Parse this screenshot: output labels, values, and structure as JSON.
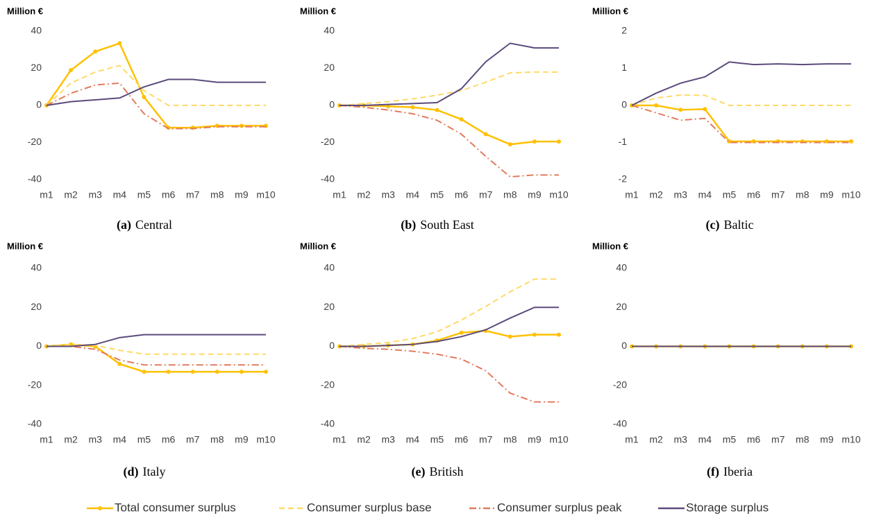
{
  "chart_data": [
    {
      "type": "line",
      "label": "(a)",
      "caption": "Central",
      "ylabel": "Million €",
      "categories": [
        "m1",
        "m2",
        "m3",
        "m4",
        "m5",
        "m6",
        "m7",
        "m8",
        "m9",
        "m10"
      ],
      "ylim": [
        -40,
        40
      ],
      "yticks": [
        -40,
        -20,
        0,
        20,
        40
      ],
      "grid": false,
      "series": [
        {
          "name": "Total consumer surplus",
          "color": "#ffc000",
          "style": "solid-markers",
          "values": [
            0,
            19,
            29,
            33.5,
            4.5,
            -12,
            -12,
            -11,
            -11,
            -11
          ]
        },
        {
          "name": "Consumer surplus base",
          "color": "#ffd966",
          "style": "dashed",
          "values": [
            0,
            12,
            18,
            21.5,
            8,
            0,
            0,
            0,
            0,
            0
          ]
        },
        {
          "name": "Consumer surplus peak",
          "color": "#e27b5c",
          "style": "dashdot",
          "values": [
            0,
            6.5,
            11,
            12,
            -4.5,
            -12.5,
            -12.5,
            -11.5,
            -11.5,
            -11.5
          ]
        },
        {
          "name": "Storage surplus",
          "color": "#5b4a7b",
          "style": "solid",
          "values": [
            0,
            2,
            3,
            4,
            10,
            14,
            14,
            12.5,
            12.5,
            12.5
          ]
        }
      ]
    },
    {
      "type": "line",
      "label": "(b)",
      "caption": "South East",
      "ylabel": "Million €",
      "categories": [
        "m1",
        "m2",
        "m3",
        "m4",
        "m5",
        "m6",
        "m7",
        "m8",
        "m9",
        "m10"
      ],
      "ylim": [
        -40,
        40
      ],
      "yticks": [
        -40,
        -20,
        0,
        20,
        40
      ],
      "grid": false,
      "series": [
        {
          "name": "Total consumer surplus",
          "color": "#ffc000",
          "style": "solid-markers",
          "values": [
            0,
            0,
            -0.5,
            -1,
            -2.5,
            -7.5,
            -15.5,
            -21,
            -19.5,
            -19.5
          ]
        },
        {
          "name": "Consumer surplus base",
          "color": "#ffd966",
          "style": "dashed",
          "values": [
            0,
            1,
            2,
            3.5,
            5.5,
            8,
            12.5,
            17.5,
            18,
            18
          ]
        },
        {
          "name": "Consumer surplus peak",
          "color": "#e27b5c",
          "style": "dashdot",
          "values": [
            0,
            -1,
            -2.5,
            -4.5,
            -8,
            -15.5,
            -27.5,
            -38.5,
            -37.5,
            -37.5
          ]
        },
        {
          "name": "Storage surplus",
          "color": "#5b4a7b",
          "style": "solid",
          "values": [
            0,
            0,
            0.5,
            1,
            1.5,
            9,
            23.5,
            33.5,
            31,
            31
          ]
        }
      ]
    },
    {
      "type": "line",
      "label": "(c)",
      "caption": "Baltic",
      "ylabel": "Million €",
      "categories": [
        "m1",
        "m2",
        "m3",
        "m4",
        "m5",
        "m6",
        "m7",
        "m8",
        "m9",
        "m10"
      ],
      "ylim": [
        -2,
        2
      ],
      "yticks": [
        -2,
        -1,
        0,
        1,
        2
      ],
      "grid": false,
      "series": [
        {
          "name": "Total consumer surplus",
          "color": "#ffc000",
          "style": "solid-markers",
          "values": [
            0,
            0,
            -0.12,
            -0.1,
            -0.97,
            -0.97,
            -0.97,
            -0.97,
            -0.97,
            -0.97
          ]
        },
        {
          "name": "Consumer surplus base",
          "color": "#ffd966",
          "style": "dashed",
          "values": [
            0,
            0.2,
            0.28,
            0.27,
            0,
            0,
            0,
            0,
            0,
            0
          ]
        },
        {
          "name": "Consumer surplus peak",
          "color": "#e27b5c",
          "style": "dashdot",
          "values": [
            0,
            -0.2,
            -0.4,
            -0.35,
            -1,
            -1,
            -1,
            -1,
            -1,
            -1
          ]
        },
        {
          "name": "Storage surplus",
          "color": "#5b4a7b",
          "style": "solid",
          "values": [
            0,
            0.33,
            0.6,
            0.77,
            1.17,
            1.1,
            1.12,
            1.1,
            1.12,
            1.12
          ]
        }
      ]
    },
    {
      "type": "line",
      "label": "(d)",
      "caption": "Italy",
      "ylabel": "Million €",
      "categories": [
        "m1",
        "m2",
        "m3",
        "m4",
        "m5",
        "m6",
        "m7",
        "m8",
        "m9",
        "m10"
      ],
      "ylim": [
        -40,
        40
      ],
      "yticks": [
        -40,
        -20,
        0,
        20,
        40
      ],
      "grid": false,
      "series": [
        {
          "name": "Total consumer surplus",
          "color": "#ffc000",
          "style": "solid-markers",
          "values": [
            0,
            1,
            0,
            -9,
            -13,
            -13,
            -13,
            -13,
            -13,
            -13
          ]
        },
        {
          "name": "Consumer surplus base",
          "color": "#ffd966",
          "style": "dashed",
          "values": [
            0,
            1,
            0.5,
            -2,
            -4,
            -4,
            -4,
            -4,
            -4,
            -4
          ]
        },
        {
          "name": "Consumer surplus peak",
          "color": "#e27b5c",
          "style": "dashdot",
          "values": [
            0,
            0,
            -1.5,
            -7,
            -9.5,
            -9.5,
            -9.5,
            -9.5,
            -9.5,
            -9.5
          ]
        },
        {
          "name": "Storage surplus",
          "color": "#5b4a7b",
          "style": "solid",
          "values": [
            0,
            0,
            1,
            4.5,
            6,
            6,
            6,
            6,
            6,
            6
          ]
        }
      ]
    },
    {
      "type": "line",
      "label": "(e)",
      "caption": "British",
      "ylabel": "Million €",
      "categories": [
        "m1",
        "m2",
        "m3",
        "m4",
        "m5",
        "m6",
        "m7",
        "m8",
        "m9",
        "m10"
      ],
      "ylim": [
        -40,
        40
      ],
      "yticks": [
        -40,
        -20,
        0,
        20,
        40
      ],
      "grid": false,
      "series": [
        {
          "name": "Total consumer surplus",
          "color": "#ffc000",
          "style": "solid-markers",
          "values": [
            0,
            0,
            0.5,
            1,
            3,
            7,
            8,
            5,
            6,
            6
          ]
        },
        {
          "name": "Consumer surplus base",
          "color": "#ffd966",
          "style": "dashed",
          "values": [
            0,
            1,
            2,
            4,
            7.5,
            13.5,
            20.5,
            28,
            34.5,
            34.5
          ]
        },
        {
          "name": "Consumer surplus peak",
          "color": "#e27b5c",
          "style": "dashdot",
          "values": [
            0,
            -1,
            -1.5,
            -2.5,
            -4,
            -6.5,
            -12.5,
            -24,
            -28.5,
            -28.5
          ]
        },
        {
          "name": "Storage surplus",
          "color": "#5b4a7b",
          "style": "solid",
          "values": [
            0,
            0,
            0.5,
            1,
            2.5,
            5,
            8.5,
            14.5,
            20,
            20
          ]
        }
      ]
    },
    {
      "type": "line",
      "label": "(f)",
      "caption": "Iberia",
      "ylabel": "Million €",
      "categories": [
        "m1",
        "m2",
        "m3",
        "m4",
        "m5",
        "m6",
        "m7",
        "m8",
        "m9",
        "m10"
      ],
      "ylim": [
        -40,
        40
      ],
      "yticks": [
        -40,
        -20,
        0,
        20,
        40
      ],
      "grid": false,
      "series": [
        {
          "name": "Total consumer surplus",
          "color": "#ffc000",
          "style": "solid-markers",
          "values": [
            0,
            0,
            0,
            0,
            0,
            0,
            0,
            0,
            0,
            0
          ]
        },
        {
          "name": "Consumer surplus base",
          "color": "#ffd966",
          "style": "dashed",
          "values": [
            0,
            0,
            0,
            0,
            0,
            0,
            0,
            0,
            0,
            0
          ]
        },
        {
          "name": "Consumer surplus peak",
          "color": "#e27b5c",
          "style": "dashdot",
          "values": [
            0,
            0,
            0,
            0,
            0,
            0,
            0,
            0,
            0,
            0
          ]
        },
        {
          "name": "Storage surplus",
          "color": "#5b4a7b",
          "style": "solid",
          "values": [
            0,
            0,
            0,
            0,
            0,
            0,
            0,
            0,
            0,
            0
          ]
        }
      ]
    }
  ]
}
